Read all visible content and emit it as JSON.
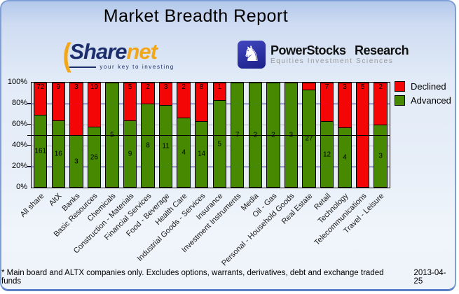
{
  "header": {
    "title": "Market Breadth Report"
  },
  "logos": {
    "sharenet": {
      "part1": "Share",
      "part2": "net",
      "tagline": "your key to investing",
      "color_navy": "#1c2d6b",
      "color_orange": "#f2a71b"
    },
    "powerstocks": {
      "name": "PowerStocks Research",
      "tagline": "Equities Investment Sciences",
      "icon": "chess-knight-icon",
      "box_color": "#2a2fa0"
    }
  },
  "chart_data": {
    "type": "bar",
    "variant": "stacked-percent-column",
    "legend_position": "top-right",
    "ylim": [
      0,
      100
    ],
    "y_ticks": [
      "100%",
      "80%",
      "60%",
      "40%",
      "20%",
      "0%"
    ],
    "grid": {
      "navy_lines_pct": [
        20,
        80
      ],
      "gray_lines_pct": [
        40,
        60
      ],
      "ref_line_pct": 50,
      "navy_color": "#1b1b8e",
      "gray_color": "#b4b4b4",
      "ref_color": "#000000"
    },
    "categories": [
      "All share",
      "AltX",
      "Banks",
      "Basic Resources",
      "Chemicals",
      "Construction - Materials",
      "Financial Services",
      "Food - Beverage",
      "Health Care",
      "Industrial Goods - Services",
      "Insurance",
      "Investment Instruments",
      "Media",
      "Oil - Gas",
      "Personal - Household Goods",
      "Real Estate",
      "Retail",
      "Technology",
      "Telecommunications",
      "Travel - Leisure"
    ],
    "series": [
      {
        "name": "Declined",
        "color": "#f40606",
        "values": [
          72,
          9,
          3,
          19,
          0,
          5,
          2,
          3,
          2,
          8,
          1,
          0,
          0,
          0,
          0,
          2,
          7,
          3,
          5,
          2
        ],
        "labels": [
          "72",
          "9",
          "3",
          "19",
          "",
          "5",
          "2",
          "3",
          "2",
          "8",
          "1",
          "",
          "",
          "",
          "",
          "",
          "7",
          "3",
          "5",
          "2"
        ]
      },
      {
        "name": "Advanced",
        "color": "#478a02",
        "values": [
          161,
          16,
          3,
          26,
          5,
          9,
          8,
          11,
          4,
          14,
          5,
          7,
          2,
          2,
          3,
          27,
          12,
          4,
          0,
          3
        ],
        "labels": [
          "161",
          "16",
          "3",
          "26",
          "5",
          "9",
          "8",
          "11",
          "4",
          "14",
          "5",
          "7",
          "2",
          "2",
          "3",
          "27",
          "12",
          "4",
          "",
          "3"
        ]
      }
    ]
  },
  "footer": {
    "note": "* Main board and ALTX companies only. Excludes options, warrants, derivatives, debt and exchange traded funds",
    "date": "2013-04-25"
  }
}
